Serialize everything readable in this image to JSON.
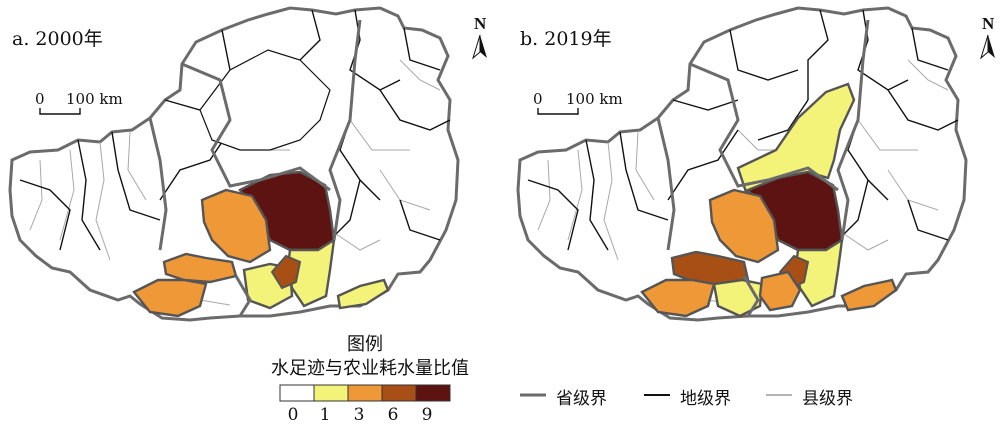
{
  "panels": [
    {
      "title": "a. 2000年",
      "north_label": "N",
      "scale_zero": "0",
      "scale_text": "100 km",
      "regions": {
        "yan": "9",
        "north": "0",
        "central_left": "3",
        "central_right": "1",
        "west_strip": "3",
        "southwest": "3",
        "southmid": "1",
        "southeast": "1",
        "small_dark": "6"
      }
    },
    {
      "title": "b. 2019年",
      "north_label": "N",
      "scale_zero": "0",
      "scale_text": "100 km",
      "regions": {
        "yan": "9",
        "north": "1",
        "central_left": "3",
        "central_right": "1",
        "west_strip": "6",
        "southwest": "3",
        "southmid": "1",
        "southeast": "3",
        "small_dark": "6"
      }
    }
  ],
  "legend": {
    "title_line1": "图例",
    "title_line2": "水足迹与农业耗水量比值",
    "breaks": [
      "0",
      "1",
      "3",
      "6",
      "9"
    ],
    "classes": [
      {
        "key": "0",
        "color": "#ffffff"
      },
      {
        "key": "1",
        "color": "#f3f37a"
      },
      {
        "key": "3",
        "color": "#ee9838"
      },
      {
        "key": "6",
        "color": "#a84f16"
      },
      {
        "key": "9",
        "color": "#5c1311"
      }
    ]
  },
  "boundary_legend": [
    {
      "label": "省级界",
      "color": "#6b6b6b"
    },
    {
      "label": "地级界",
      "color": "#111111"
    },
    {
      "label": "县级界",
      "color": "#9a9a9a"
    }
  ],
  "class_colors": {
    "0": "#ffffff",
    "1": "#f3f37a",
    "3": "#ee9838",
    "6": "#a84f16",
    "9": "#5c1311"
  }
}
